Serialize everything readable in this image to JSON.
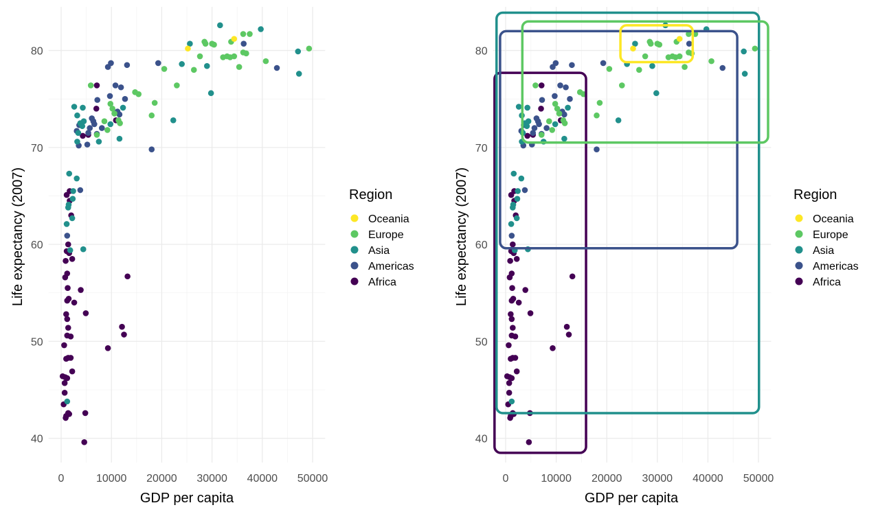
{
  "chart_data": [
    {
      "id": "left",
      "type": "scatter",
      "title": "",
      "xlabel": "GDP per capita",
      "ylabel": "Life expectancy (2007)",
      "xlim": [
        -2500,
        52500
      ],
      "ylim": [
        37.5,
        84.5
      ],
      "x_ticks": [
        0,
        10000,
        20000,
        30000,
        40000,
        50000
      ],
      "x_tick_labels": [
        "0",
        "10000",
        "20000",
        "30000",
        "40000",
        "50000"
      ],
      "y_ticks": [
        40,
        50,
        60,
        70,
        80
      ],
      "y_tick_labels": [
        "40",
        "50",
        "60",
        "70",
        "80"
      ],
      "grid": true,
      "legend": {
        "title": "Region",
        "position": "right"
      },
      "show_region_boxes": false
    },
    {
      "id": "right",
      "type": "scatter",
      "title": "",
      "xlabel": "GDP per capita",
      "ylabel": "Life expectancy (2007)",
      "xlim": [
        -2500,
        52500
      ],
      "ylim": [
        37.5,
        84.5
      ],
      "x_ticks": [
        0,
        10000,
        20000,
        30000,
        40000,
        50000
      ],
      "x_tick_labels": [
        "0",
        "10000",
        "20000",
        "30000",
        "40000",
        "50000"
      ],
      "y_ticks": [
        40,
        50,
        60,
        70,
        80
      ],
      "y_tick_labels": [
        "40",
        "50",
        "60",
        "70",
        "80"
      ],
      "grid": true,
      "legend": {
        "title": "Region",
        "position": "right"
      },
      "show_region_boxes": true,
      "region_boxes": [
        {
          "region": "Africa",
          "xmin": -2200,
          "xmax": 15900,
          "ymin": 38.5,
          "ymax": 77.7
        },
        {
          "region": "Americas",
          "xmin": -1100,
          "xmax": 45800,
          "ymin": 59.6,
          "ymax": 82.0
        },
        {
          "region": "Asia",
          "xmin": -1800,
          "xmax": 50100,
          "ymin": 42.6,
          "ymax": 83.9
        },
        {
          "region": "Europe",
          "xmin": 3300,
          "xmax": 51900,
          "ymin": 70.5,
          "ymax": 83.0
        },
        {
          "region": "Oceania",
          "xmin": 22700,
          "xmax": 37000,
          "ymin": 78.8,
          "ymax": 82.6
        }
      ]
    }
  ],
  "regions": [
    {
      "name": "Oceania",
      "color": "#FDE725"
    },
    {
      "name": "Europe",
      "color": "#5DC863"
    },
    {
      "name": "Asia",
      "color": "#21908C"
    },
    {
      "name": "Americas",
      "color": "#3B528B"
    },
    {
      "name": "Africa",
      "color": "#440154"
    }
  ],
  "points": [
    {
      "gdp": 25200,
      "life": 80.2,
      "region": "Oceania"
    },
    {
      "gdp": 34400,
      "life": 81.2,
      "region": "Oceania"
    },
    {
      "gdp": 5900,
      "life": 76.4,
      "region": "Europe"
    },
    {
      "gdp": 9800,
      "life": 74.5,
      "region": "Europe"
    },
    {
      "gdp": 10600,
      "life": 73.5,
      "region": "Europe"
    },
    {
      "gdp": 10200,
      "life": 74.0,
      "region": "Europe"
    },
    {
      "gdp": 14700,
      "life": 75.7,
      "region": "Europe"
    },
    {
      "gdp": 15400,
      "life": 75.5,
      "region": "Europe"
    },
    {
      "gdp": 18000,
      "life": 73.3,
      "region": "Europe"
    },
    {
      "gdp": 18600,
      "life": 74.6,
      "region": "Europe"
    },
    {
      "gdp": 20500,
      "life": 78.1,
      "region": "Europe"
    },
    {
      "gdp": 23000,
      "life": 76.4,
      "region": "Europe"
    },
    {
      "gdp": 9200,
      "life": 71.8,
      "region": "Europe"
    },
    {
      "gdp": 8600,
      "life": 72.7,
      "region": "Europe"
    },
    {
      "gdp": 11400,
      "life": 72.8,
      "region": "Europe"
    },
    {
      "gdp": 11700,
      "life": 72.5,
      "region": "Europe"
    },
    {
      "gdp": 7100,
      "life": 71.3,
      "region": "Europe"
    },
    {
      "gdp": 26400,
      "life": 78.0,
      "region": "Europe"
    },
    {
      "gdp": 28700,
      "life": 80.7,
      "region": "Europe"
    },
    {
      "gdp": 28500,
      "life": 80.9,
      "region": "Europe"
    },
    {
      "gdp": 30400,
      "life": 80.6,
      "region": "Europe"
    },
    {
      "gdp": 27600,
      "life": 79.4,
      "region": "Europe"
    },
    {
      "gdp": 32200,
      "life": 79.3,
      "region": "Europe"
    },
    {
      "gdp": 33000,
      "life": 79.4,
      "region": "Europe"
    },
    {
      "gdp": 33600,
      "life": 79.3,
      "region": "Europe"
    },
    {
      "gdp": 34400,
      "life": 79.4,
      "region": "Europe"
    },
    {
      "gdp": 33800,
      "life": 80.9,
      "region": "Europe"
    },
    {
      "gdp": 36200,
      "life": 81.7,
      "region": "Europe"
    },
    {
      "gdp": 37500,
      "life": 81.7,
      "region": "Europe"
    },
    {
      "gdp": 36200,
      "life": 79.8,
      "region": "Europe"
    },
    {
      "gdp": 36800,
      "life": 79.7,
      "region": "Europe"
    },
    {
      "gdp": 35400,
      "life": 78.3,
      "region": "Europe"
    },
    {
      "gdp": 40700,
      "life": 78.9,
      "region": "Europe"
    },
    {
      "gdp": 49300,
      "life": 80.2,
      "region": "Europe"
    },
    {
      "gdp": 30000,
      "life": 80.7,
      "region": "Europe"
    },
    {
      "gdp": 2600,
      "life": 74.2,
      "region": "Asia"
    },
    {
      "gdp": 4300,
      "life": 74.1,
      "region": "Asia"
    },
    {
      "gdp": 3200,
      "life": 73.3,
      "region": "Asia"
    },
    {
      "gdp": 3800,
      "life": 72.5,
      "region": "Asia"
    },
    {
      "gdp": 4200,
      "life": 72.2,
      "region": "Asia"
    },
    {
      "gdp": 4500,
      "life": 72.7,
      "region": "Asia"
    },
    {
      "gdp": 3400,
      "life": 71.5,
      "region": "Asia"
    },
    {
      "gdp": 3200,
      "life": 70.6,
      "region": "Asia"
    },
    {
      "gdp": 7500,
      "life": 70.6,
      "region": "Asia"
    },
    {
      "gdp": 11600,
      "life": 70.9,
      "region": "Asia"
    },
    {
      "gdp": 12300,
      "life": 74.1,
      "region": "Asia"
    },
    {
      "gdp": 9800,
      "life": 72.4,
      "region": "Asia"
    },
    {
      "gdp": 22300,
      "life": 72.8,
      "region": "Asia"
    },
    {
      "gdp": 24000,
      "life": 78.6,
      "region": "Asia"
    },
    {
      "gdp": 25600,
      "life": 80.7,
      "region": "Asia"
    },
    {
      "gdp": 29800,
      "life": 75.6,
      "region": "Asia"
    },
    {
      "gdp": 31600,
      "life": 82.6,
      "region": "Asia"
    },
    {
      "gdp": 29000,
      "life": 78.4,
      "region": "Asia"
    },
    {
      "gdp": 39700,
      "life": 82.2,
      "region": "Asia"
    },
    {
      "gdp": 47100,
      "life": 79.9,
      "region": "Asia"
    },
    {
      "gdp": 47300,
      "life": 77.6,
      "region": "Asia"
    },
    {
      "gdp": 1600,
      "life": 67.3,
      "region": "Asia"
    },
    {
      "gdp": 3100,
      "life": 66.8,
      "region": "Asia"
    },
    {
      "gdp": 2400,
      "life": 65.5,
      "region": "Asia"
    },
    {
      "gdp": 2300,
      "life": 64.7,
      "region": "Asia"
    },
    {
      "gdp": 1500,
      "life": 64.1,
      "region": "Asia"
    },
    {
      "gdp": 1400,
      "life": 63.8,
      "region": "Asia"
    },
    {
      "gdp": 2200,
      "life": 62.7,
      "region": "Asia"
    },
    {
      "gdp": 1100,
      "life": 62.1,
      "region": "Asia"
    },
    {
      "gdp": 1800,
      "life": 59.4,
      "region": "Asia"
    },
    {
      "gdp": 4400,
      "life": 59.5,
      "region": "Asia"
    },
    {
      "gdp": 1200,
      "life": 43.8,
      "region": "Asia"
    },
    {
      "gdp": 9300,
      "life": 78.3,
      "region": "Americas"
    },
    {
      "gdp": 9900,
      "life": 78.7,
      "region": "Americas"
    },
    {
      "gdp": 13100,
      "life": 78.5,
      "region": "Americas"
    },
    {
      "gdp": 19300,
      "life": 78.7,
      "region": "Americas"
    },
    {
      "gdp": 10800,
      "life": 76.4,
      "region": "Americas"
    },
    {
      "gdp": 11900,
      "life": 76.2,
      "region": "Americas"
    },
    {
      "gdp": 9700,
      "life": 75.3,
      "region": "Americas"
    },
    {
      "gdp": 12700,
      "life": 75.0,
      "region": "Americas"
    },
    {
      "gdp": 7200,
      "life": 74.9,
      "region": "Americas"
    },
    {
      "gdp": 11200,
      "life": 73.7,
      "region": "Americas"
    },
    {
      "gdp": 11600,
      "life": 73.4,
      "region": "Americas"
    },
    {
      "gdp": 6100,
      "life": 73.0,
      "region": "Americas"
    },
    {
      "gdp": 6400,
      "life": 72.7,
      "region": "Americas"
    },
    {
      "gdp": 6600,
      "life": 72.4,
      "region": "Americas"
    },
    {
      "gdp": 8100,
      "life": 72.0,
      "region": "Americas"
    },
    {
      "gdp": 5700,
      "life": 72.0,
      "region": "Americas"
    },
    {
      "gdp": 5400,
      "life": 71.5,
      "region": "Americas"
    },
    {
      "gdp": 3600,
      "life": 72.3,
      "region": "Americas"
    },
    {
      "gdp": 7100,
      "life": 71.4,
      "region": "Americas"
    },
    {
      "gdp": 3500,
      "life": 70.2,
      "region": "Americas"
    },
    {
      "gdp": 5200,
      "life": 70.3,
      "region": "Americas"
    },
    {
      "gdp": 3100,
      "life": 71.7,
      "region": "Americas"
    },
    {
      "gdp": 18000,
      "life": 69.8,
      "region": "Americas"
    },
    {
      "gdp": 36300,
      "life": 80.7,
      "region": "Americas"
    },
    {
      "gdp": 42900,
      "life": 78.2,
      "region": "Americas"
    },
    {
      "gdp": 3800,
      "life": 65.6,
      "region": "Americas"
    },
    {
      "gdp": 1200,
      "life": 60.9,
      "region": "Americas"
    },
    {
      "gdp": 7100,
      "life": 76.4,
      "region": "Africa"
    },
    {
      "gdp": 7000,
      "life": 74.0,
      "region": "Africa"
    },
    {
      "gdp": 4300,
      "life": 71.2,
      "region": "Africa"
    },
    {
      "gdp": 5400,
      "life": 71.3,
      "region": "Africa"
    },
    {
      "gdp": 10900,
      "life": 72.8,
      "region": "Africa"
    },
    {
      "gdp": 1700,
      "life": 65.5,
      "region": "Africa"
    },
    {
      "gdp": 1100,
      "life": 65.1,
      "region": "Africa"
    },
    {
      "gdp": 2000,
      "life": 63.0,
      "region": "Africa"
    },
    {
      "gdp": 1700,
      "life": 64.5,
      "region": "Africa"
    },
    {
      "gdp": 1400,
      "life": 60.0,
      "region": "Africa"
    },
    {
      "gdp": 1100,
      "life": 59.3,
      "region": "Africa"
    },
    {
      "gdp": 1600,
      "life": 59.1,
      "region": "Africa"
    },
    {
      "gdp": 900,
      "life": 58.3,
      "region": "Africa"
    },
    {
      "gdp": 2200,
      "life": 58.5,
      "region": "Africa"
    },
    {
      "gdp": 1200,
      "life": 57.0,
      "region": "Africa"
    },
    {
      "gdp": 800,
      "life": 56.6,
      "region": "Africa"
    },
    {
      "gdp": 1300,
      "life": 55.5,
      "region": "Africa"
    },
    {
      "gdp": 3900,
      "life": 55.3,
      "region": "Africa"
    },
    {
      "gdp": 1500,
      "life": 54.4,
      "region": "Africa"
    },
    {
      "gdp": 2600,
      "life": 54.0,
      "region": "Africa"
    },
    {
      "gdp": 1200,
      "life": 54.2,
      "region": "Africa"
    },
    {
      "gdp": 1000,
      "life": 52.8,
      "region": "Africa"
    },
    {
      "gdp": 1200,
      "life": 52.3,
      "region": "Africa"
    },
    {
      "gdp": 4900,
      "life": 52.9,
      "region": "Africa"
    },
    {
      "gdp": 1400,
      "life": 51.4,
      "region": "Africa"
    },
    {
      "gdp": 1200,
      "life": 50.6,
      "region": "Africa"
    },
    {
      "gdp": 1900,
      "life": 50.5,
      "region": "Africa"
    },
    {
      "gdp": 12100,
      "life": 51.5,
      "region": "Africa"
    },
    {
      "gdp": 12500,
      "life": 50.7,
      "region": "Africa"
    },
    {
      "gdp": 13200,
      "life": 56.7,
      "region": "Africa"
    },
    {
      "gdp": 600,
      "life": 49.6,
      "region": "Africa"
    },
    {
      "gdp": 9300,
      "life": 49.3,
      "region": "Africa"
    },
    {
      "gdp": 1400,
      "life": 48.3,
      "region": "Africa"
    },
    {
      "gdp": 1000,
      "life": 48.2,
      "region": "Africa"
    },
    {
      "gdp": 1900,
      "life": 48.3,
      "region": "Africa"
    },
    {
      "gdp": 2200,
      "life": 46.9,
      "region": "Africa"
    },
    {
      "gdp": 300,
      "life": 46.4,
      "region": "Africa"
    },
    {
      "gdp": 800,
      "life": 46.3,
      "region": "Africa"
    },
    {
      "gdp": 1200,
      "life": 46.2,
      "region": "Africa"
    },
    {
      "gdp": 700,
      "life": 45.7,
      "region": "Africa"
    },
    {
      "gdp": 700,
      "life": 44.7,
      "region": "Africa"
    },
    {
      "gdp": 500,
      "life": 43.5,
      "region": "Africa"
    },
    {
      "gdp": 1400,
      "life": 42.6,
      "region": "Africa"
    },
    {
      "gdp": 1600,
      "life": 42.5,
      "region": "Africa"
    },
    {
      "gdp": 1000,
      "life": 42.3,
      "region": "Africa"
    },
    {
      "gdp": 900,
      "life": 42.1,
      "region": "Africa"
    },
    {
      "gdp": 4800,
      "life": 42.6,
      "region": "Africa"
    },
    {
      "gdp": 4600,
      "life": 39.6,
      "region": "Africa"
    }
  ]
}
